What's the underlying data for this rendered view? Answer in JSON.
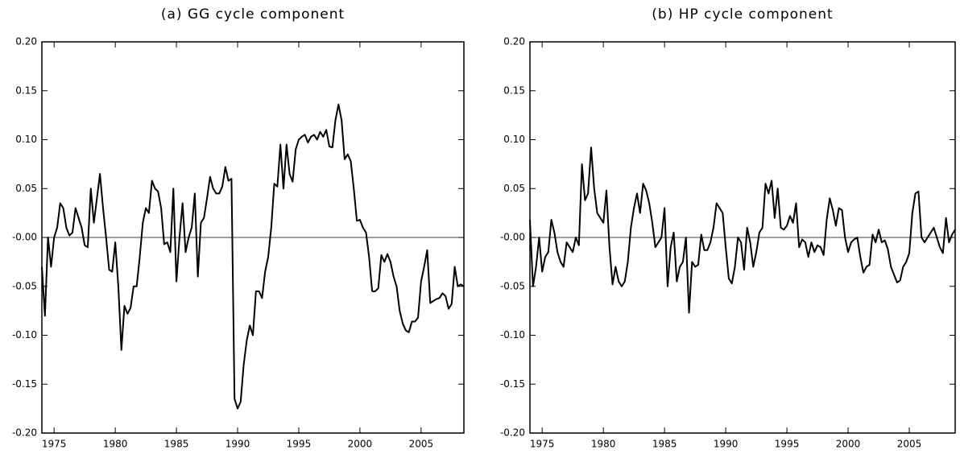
{
  "chart_data": [
    {
      "type": "line",
      "title": "(a) GG cycle component",
      "xlim": [
        1974,
        2008.5
      ],
      "xticks": [
        1975,
        1980,
        1985,
        1990,
        1995,
        2000,
        2005
      ],
      "ylim": [
        -0.2,
        0.2
      ],
      "yticks": [
        {
          "value": 0.2,
          "label": "0.20"
        },
        {
          "value": 0.15,
          "label": "0.15"
        },
        {
          "value": 0.1,
          "label": "0.10"
        },
        {
          "value": 0.05,
          "label": "0.05"
        },
        {
          "value": 0,
          "label": "-0.00"
        },
        {
          "value": -0.05,
          "label": "-0.05"
        },
        {
          "value": -0.1,
          "label": "-0.10"
        },
        {
          "value": -0.15,
          "label": "-0.15"
        },
        {
          "value": -0.2,
          "label": "-0.20"
        }
      ],
      "reference_line": 0,
      "color": "#000000",
      "x": [
        1974,
        1974.25,
        1974.5,
        1974.75,
        1975,
        1975.25,
        1975.5,
        1975.75,
        1976,
        1976.25,
        1976.5,
        1976.75,
        1977,
        1977.25,
        1977.5,
        1977.75,
        1978,
        1978.25,
        1978.5,
        1978.75,
        1979,
        1979.25,
        1979.5,
        1979.75,
        1980,
        1980.25,
        1980.5,
        1980.75,
        1981,
        1981.25,
        1981.5,
        1981.75,
        1982,
        1982.25,
        1982.5,
        1982.75,
        1983,
        1983.25,
        1983.5,
        1983.75,
        1984,
        1984.25,
        1984.5,
        1984.75,
        1985,
        1985.25,
        1985.5,
        1985.75,
        1986,
        1986.25,
        1986.5,
        1986.75,
        1987,
        1987.25,
        1987.5,
        1987.75,
        1988,
        1988.25,
        1988.5,
        1988.75,
        1989,
        1989.25,
        1989.5,
        1989.75,
        1990,
        1990.25,
        1990.5,
        1990.75,
        1991,
        1991.25,
        1991.5,
        1991.75,
        1992,
        1992.25,
        1992.5,
        1992.75,
        1993,
        1993.25,
        1993.5,
        1993.75,
        1994,
        1994.25,
        1994.5,
        1994.75,
        1995,
        1995.25,
        1995.5,
        1995.75,
        1996,
        1996.25,
        1996.5,
        1996.75,
        1997,
        1997.25,
        1997.5,
        1997.75,
        1998,
        1998.25,
        1998.5,
        1998.75,
        1999,
        1999.25,
        1999.5,
        1999.75,
        2000,
        2000.25,
        2000.5,
        2000.75,
        2001,
        2001.25,
        2001.5,
        2001.75,
        2002,
        2002.25,
        2002.5,
        2002.75,
        2003,
        2003.25,
        2003.5,
        2003.75,
        2004,
        2004.25,
        2004.5,
        2004.75,
        2005,
        2005.25,
        2005.5,
        2005.75,
        2006,
        2006.25,
        2006.5,
        2006.75,
        2007,
        2007.25,
        2007.5,
        2007.75,
        2008,
        2008.25,
        2008.5
      ],
      "values": [
        -0.03,
        -0.08,
        0.0,
        -0.03,
        0.0,
        0.01,
        0.035,
        0.03,
        0.01,
        0.002,
        0.005,
        0.03,
        0.02,
        0.01,
        -0.008,
        -0.01,
        0.05,
        0.015,
        0.04,
        0.065,
        0.03,
        0.0,
        -0.033,
        -0.035,
        -0.005,
        -0.05,
        -0.115,
        -0.07,
        -0.078,
        -0.072,
        -0.05,
        -0.05,
        -0.02,
        0.015,
        0.03,
        0.025,
        0.058,
        0.05,
        0.047,
        0.03,
        -0.007,
        -0.005,
        -0.015,
        0.05,
        -0.045,
        0.0,
        0.035,
        -0.015,
        0.0,
        0.01,
        0.045,
        -0.04,
        0.015,
        0.02,
        0.04,
        0.062,
        0.05,
        0.045,
        0.045,
        0.052,
        0.072,
        0.058,
        0.06,
        -0.165,
        -0.175,
        -0.168,
        -0.13,
        -0.105,
        -0.09,
        -0.1,
        -0.055,
        -0.055,
        -0.062,
        -0.035,
        -0.02,
        0.01,
        0.055,
        0.052,
        0.095,
        0.05,
        0.095,
        0.065,
        0.057,
        0.09,
        0.1,
        0.103,
        0.105,
        0.097,
        0.103,
        0.105,
        0.1,
        0.108,
        0.103,
        0.11,
        0.093,
        0.092,
        0.12,
        0.136,
        0.12,
        0.08,
        0.085,
        0.078,
        0.05,
        0.017,
        0.018,
        0.01,
        0.005,
        -0.02,
        -0.055,
        -0.055,
        -0.052,
        -0.018,
        -0.025,
        -0.017,
        -0.025,
        -0.04,
        -0.05,
        -0.075,
        -0.088,
        -0.095,
        -0.097,
        -0.086,
        -0.086,
        -0.082,
        -0.045,
        -0.03,
        -0.013,
        -0.067,
        -0.065,
        -0.063,
        -0.062,
        -0.057,
        -0.06,
        -0.073,
        -0.068,
        -0.03,
        -0.05,
        -0.048,
        -0.05
      ]
    },
    {
      "type": "line",
      "title": "(b) HP cycle component",
      "xlim": [
        1974,
        2008.75
      ],
      "xticks": [
        1975,
        1980,
        1985,
        1990,
        1995,
        2000,
        2005
      ],
      "ylim": [
        -0.2,
        0.2
      ],
      "yticks": [
        {
          "value": 0.2,
          "label": "0.20"
        },
        {
          "value": 0.15,
          "label": "0.15"
        },
        {
          "value": 0.1,
          "label": "0.10"
        },
        {
          "value": 0.05,
          "label": "0.05"
        },
        {
          "value": 0,
          "label": "-0.00"
        },
        {
          "value": -0.05,
          "label": "-0.05"
        },
        {
          "value": -0.1,
          "label": "-0.10"
        },
        {
          "value": -0.15,
          "label": "-0.15"
        },
        {
          "value": -0.2,
          "label": "-0.20"
        }
      ],
      "reference_line": 0,
      "color": "#000000",
      "x": [
        1974,
        1974.25,
        1974.5,
        1974.75,
        1975,
        1975.25,
        1975.5,
        1975.75,
        1976,
        1976.25,
        1976.5,
        1976.75,
        1977,
        1977.25,
        1977.5,
        1977.75,
        1978,
        1978.25,
        1978.5,
        1978.75,
        1979,
        1979.25,
        1979.5,
        1979.75,
        1980,
        1980.25,
        1980.5,
        1980.75,
        1981,
        1981.25,
        1981.5,
        1981.75,
        1982,
        1982.25,
        1982.5,
        1982.75,
        1983,
        1983.25,
        1983.5,
        1983.75,
        1984,
        1984.25,
        1984.5,
        1984.75,
        1985,
        1985.25,
        1985.5,
        1985.75,
        1986,
        1986.25,
        1986.5,
        1986.75,
        1987,
        1987.25,
        1987.5,
        1987.75,
        1988,
        1988.25,
        1988.5,
        1988.75,
        1989,
        1989.25,
        1989.5,
        1989.75,
        1990,
        1990.25,
        1990.5,
        1990.75,
        1991,
        1991.25,
        1991.5,
        1991.75,
        1992,
        1992.25,
        1992.5,
        1992.75,
        1993,
        1993.25,
        1993.5,
        1993.75,
        1994,
        1994.25,
        1994.5,
        1994.75,
        1995,
        1995.25,
        1995.5,
        1995.75,
        1996,
        1996.25,
        1996.5,
        1996.75,
        1997,
        1997.25,
        1997.5,
        1997.75,
        1998,
        1998.25,
        1998.5,
        1998.75,
        1999,
        1999.25,
        1999.5,
        1999.75,
        2000,
        2000.25,
        2000.5,
        2000.75,
        2001,
        2001.25,
        2001.5,
        2001.75,
        2002,
        2002.25,
        2002.5,
        2002.75,
        2003,
        2003.25,
        2003.5,
        2003.75,
        2004,
        2004.25,
        2004.5,
        2004.75,
        2005,
        2005.25,
        2005.5,
        2005.75,
        2006,
        2006.25,
        2006.5,
        2006.75,
        2007,
        2007.25,
        2007.5,
        2007.75,
        2008,
        2008.25,
        2008.5,
        2008.75
      ],
      "values": [
        0.018,
        -0.05,
        -0.03,
        0.0,
        -0.035,
        -0.02,
        -0.015,
        0.018,
        0.005,
        -0.015,
        -0.025,
        -0.03,
        -0.005,
        -0.01,
        -0.015,
        0.0,
        -0.008,
        0.075,
        0.038,
        0.045,
        0.092,
        0.05,
        0.025,
        0.02,
        0.015,
        0.048,
        -0.01,
        -0.048,
        -0.03,
        -0.045,
        -0.05,
        -0.045,
        -0.025,
        0.01,
        0.03,
        0.045,
        0.025,
        0.055,
        0.048,
        0.035,
        0.015,
        -0.01,
        -0.005,
        0.0,
        0.03,
        -0.05,
        -0.01,
        0.005,
        -0.045,
        -0.03,
        -0.025,
        0.0,
        -0.077,
        -0.025,
        -0.03,
        -0.028,
        0.003,
        -0.013,
        -0.013,
        -0.005,
        0.01,
        0.035,
        0.03,
        0.025,
        -0.01,
        -0.042,
        -0.047,
        -0.03,
        0.0,
        -0.005,
        -0.033,
        0.01,
        -0.005,
        -0.03,
        -0.015,
        0.005,
        0.01,
        0.055,
        0.045,
        0.058,
        0.02,
        0.05,
        0.01,
        0.008,
        0.012,
        0.022,
        0.015,
        0.035,
        -0.01,
        -0.002,
        -0.005,
        -0.02,
        -0.005,
        -0.015,
        -0.008,
        -0.01,
        -0.018,
        0.018,
        0.04,
        0.028,
        0.012,
        0.03,
        0.028,
        0.0,
        -0.015,
        -0.005,
        -0.002,
        0.0,
        -0.02,
        -0.036,
        -0.03,
        -0.028,
        0.003,
        -0.005,
        0.008,
        -0.005,
        -0.003,
        -0.012,
        -0.03,
        -0.038,
        -0.046,
        -0.044,
        -0.03,
        -0.025,
        -0.016,
        0.025,
        0.045,
        0.047,
        0.0,
        -0.005,
        0.0,
        0.005,
        0.01,
        0.0,
        -0.01,
        -0.016,
        0.02,
        -0.005,
        0.003,
        0.008
      ]
    }
  ]
}
